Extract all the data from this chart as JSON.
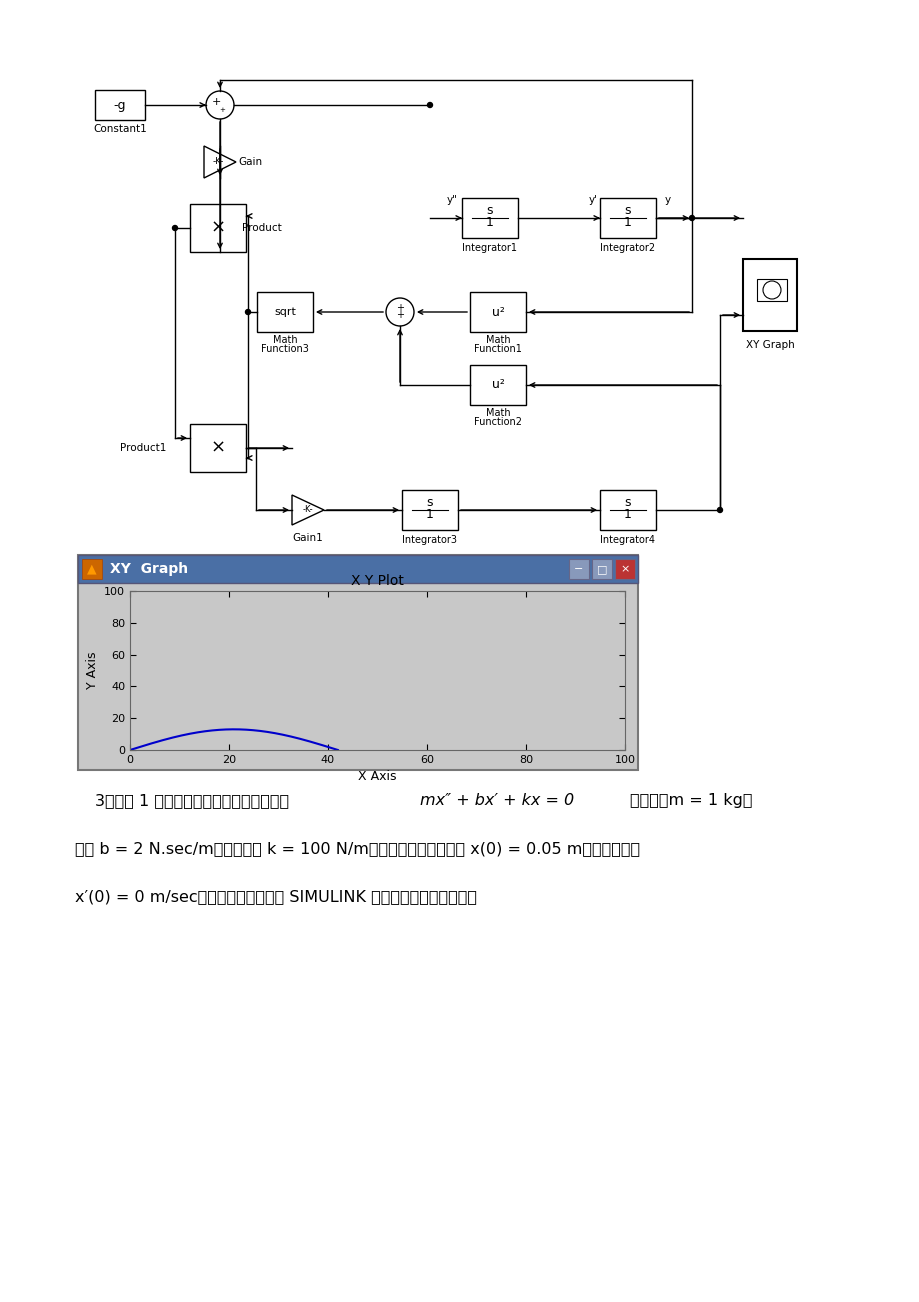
{
  "page_bg": "#ffffff",
  "window_bg": "#c8c8c8",
  "window_title_bg": "#4a6fa5",
  "inner_plot_bg": "#c8c8c8",
  "curve_color": "#0000cc",
  "x_ticks": [
    0,
    20,
    40,
    60,
    80,
    100
  ],
  "y_ticks": [
    0,
    20,
    40,
    60,
    80,
    100
  ],
  "xlim": [
    0,
    100
  ],
  "ylim": [
    0,
    100
  ],
  "plot_title": "X Y Plot",
  "x_axis_label": "X Axis",
  "y_axis_label": "Y Axis",
  "block_fc": "#ffffff",
  "block_ec": "#000000",
  "arrow_color": "#000000"
}
